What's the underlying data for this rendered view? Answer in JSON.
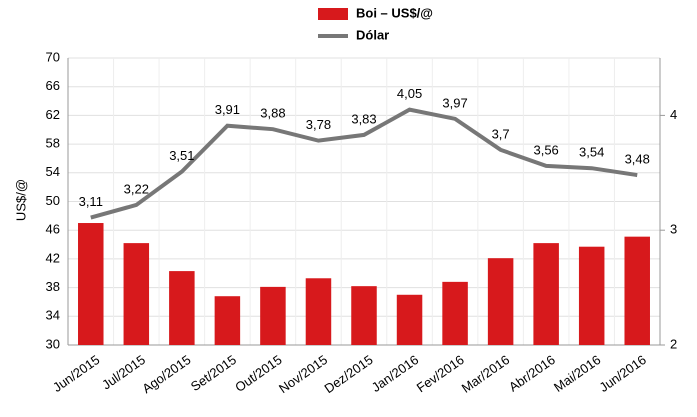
{
  "chart_data": {
    "type": "bar-line",
    "y_label": "US$/@",
    "categories": [
      "Jun/2015",
      "Jul/2015",
      "Ago/2015",
      "Set/2015",
      "Out/2015",
      "Nov/2015",
      "Dez/2015",
      "Jan/2016",
      "Fev/2016",
      "Mar/2016",
      "Abr/2016",
      "Mai/2016",
      "Jun/2016"
    ],
    "series": [
      {
        "name": "Boi – US$/@",
        "type": "bar",
        "color": "#d7191c",
        "values": [
          47.0,
          44.2,
          40.3,
          36.8,
          38.1,
          39.3,
          38.2,
          37.0,
          38.8,
          42.1,
          44.2,
          43.7,
          45.1
        ]
      },
      {
        "name": "Dólar",
        "type": "line",
        "axis": "y2",
        "color": "#777777",
        "values": [
          3.11,
          3.22,
          3.51,
          3.91,
          3.88,
          3.78,
          3.83,
          4.05,
          3.97,
          3.7,
          3.56,
          3.54,
          3.48
        ],
        "value_labels": [
          "3,11",
          "3,22",
          "3,51",
          "3,91",
          "3,88",
          "3,78",
          "3,83",
          "4,05",
          "3,97",
          "3,7",
          "3,56",
          "3,54",
          "3,48"
        ]
      }
    ],
    "ylim": [
      30,
      70
    ],
    "yticks": [
      30,
      34,
      38,
      42,
      46,
      50,
      54,
      58,
      62,
      66,
      70
    ],
    "y2lim": [
      2,
      4.5
    ],
    "y2ticks": [
      2,
      3,
      4
    ],
    "grid": true,
    "legend": "top"
  }
}
